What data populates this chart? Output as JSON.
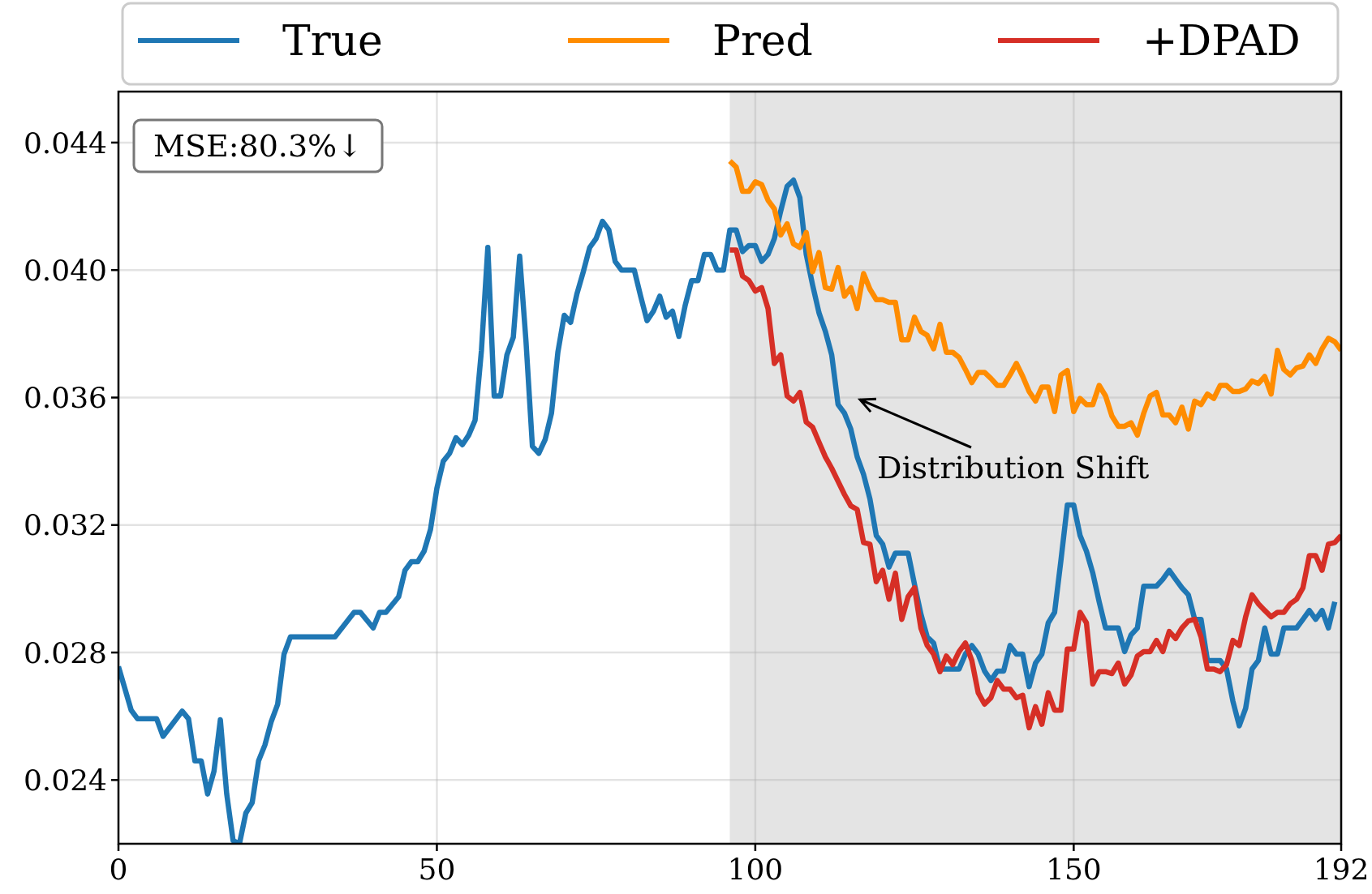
{
  "chart_data": {
    "type": "line",
    "xlim": [
      0,
      192
    ],
    "ylim": [
      0.022,
      0.0456
    ],
    "xticks": [
      0,
      50,
      100,
      150,
      192
    ],
    "yticks": [
      0.024,
      0.028,
      0.032,
      0.036,
      {
        "value": 0.04,
        "label": "0.040"
      },
      0.044
    ],
    "grid": true,
    "legend": "top",
    "line_style": "solid",
    "bands": [
      {
        "axis": "x",
        "from": 96,
        "to": 192,
        "color": "#e4e4e4"
      }
    ],
    "annotations": [
      "MSE:80.3%↓",
      "Distribution Shift"
    ],
    "series": [
      {
        "name": "True",
        "color": "#1f77b4",
        "x": [
          0,
          2,
          3,
          6,
          7,
          10,
          11,
          12,
          13,
          14,
          15,
          16,
          17,
          18,
          19,
          20,
          21,
          22,
          23,
          24,
          25,
          26,
          27,
          34,
          37,
          38,
          40,
          41,
          42,
          44,
          45,
          46,
          47,
          48,
          49,
          50,
          51,
          52,
          53,
          54,
          55,
          56,
          57,
          58,
          59,
          60,
          61,
          62,
          63,
          64,
          65,
          66,
          67,
          68,
          69,
          70,
          71,
          72,
          73,
          74,
          75,
          76,
          77,
          78,
          79,
          81,
          82,
          83,
          84,
          85,
          86,
          87,
          88,
          89,
          90,
          91,
          92,
          93,
          94,
          95,
          96,
          97,
          98,
          99,
          100,
          101,
          102,
          103,
          104,
          105,
          106,
          107,
          108,
          109,
          110,
          111,
          112,
          113,
          114,
          115,
          116,
          117,
          118,
          119,
          120,
          121,
          122,
          124,
          125,
          126,
          127,
          128,
          129,
          132,
          133,
          134,
          135,
          136,
          137,
          138,
          139,
          140,
          141,
          142,
          143,
          144,
          145,
          146,
          147,
          148,
          149,
          150,
          151,
          152,
          153,
          154,
          155,
          157,
          158,
          159,
          160,
          161,
          163,
          164,
          165,
          166,
          167,
          168,
          169,
          170,
          171,
          173,
          174,
          175,
          176,
          177,
          178,
          179,
          180,
          181,
          182,
          183,
          185,
          186,
          187,
          188,
          189,
          190,
          191
        ],
        "values": [
          0.02756,
          0.02619,
          0.02592,
          0.02592,
          0.02537,
          0.02616,
          0.02592,
          0.0246,
          0.0246,
          0.02356,
          0.02427,
          0.02589,
          0.02356,
          0.0221,
          0.022,
          0.02296,
          0.02329,
          0.0246,
          0.0251,
          0.02584,
          0.02638,
          0.02795,
          0.02849,
          0.02849,
          0.02926,
          0.02926,
          0.02877,
          0.02926,
          0.02926,
          0.02975,
          0.03058,
          0.03085,
          0.03085,
          0.03118,
          0.03186,
          0.03315,
          0.034,
          0.03425,
          0.03474,
          0.03452,
          0.03482,
          0.03529,
          0.03748,
          0.04071,
          0.03605,
          0.03605,
          0.03734,
          0.03789,
          0.04044,
          0.03775,
          0.03447,
          0.03425,
          0.03468,
          0.03551,
          0.03742,
          0.03858,
          0.03836,
          0.03926,
          0.03995,
          0.04071,
          0.04099,
          0.04153,
          0.04126,
          0.04027,
          0.04,
          0.04,
          0.03918,
          0.03841,
          0.03871,
          0.03918,
          0.03852,
          0.03871,
          0.03792,
          0.0389,
          0.03967,
          0.03967,
          0.04049,
          0.04049,
          0.04,
          0.04,
          0.04126,
          0.04126,
          0.04058,
          0.04077,
          0.04077,
          0.04027,
          0.04049,
          0.04099,
          0.04186,
          0.04263,
          0.04282,
          0.04227,
          0.04049,
          0.03953,
          0.03866,
          0.03808,
          0.03734,
          0.03578,
          0.03551,
          0.03501,
          0.03414,
          0.03359,
          0.03282,
          0.03167,
          0.0314,
          0.03068,
          0.03112,
          0.03112,
          0.03014,
          0.02921,
          0.02849,
          0.0283,
          0.02748,
          0.02748,
          0.02795,
          0.02822,
          0.02795,
          0.02742,
          0.02712,
          0.02742,
          0.02742,
          0.02822,
          0.02795,
          0.02795,
          0.02693,
          0.02767,
          0.02795,
          0.02893,
          0.02926,
          0.0309,
          0.03263,
          0.03263,
          0.03167,
          0.03118,
          0.03049,
          0.02959,
          0.02877,
          0.02877,
          0.02803,
          0.02855,
          0.02877,
          0.03008,
          0.03008,
          0.0303,
          0.03058,
          0.0303,
          0.03003,
          0.02981,
          0.02904,
          0.02904,
          0.02775,
          0.02775,
          0.02748,
          0.02647,
          0.0257,
          0.02625,
          0.02748,
          0.02775,
          0.02877,
          0.02795,
          0.02795,
          0.02877,
          0.02877,
          0.02904,
          0.02932,
          0.02904,
          0.02932,
          0.02877,
          0.02959
        ]
      },
      {
        "name": "Pred",
        "color": "#ff8c00",
        "x": [
          96,
          97,
          98,
          99,
          100,
          101,
          102,
          103,
          104,
          105,
          106,
          107,
          108,
          109,
          110,
          111,
          112,
          113,
          114,
          115,
          116,
          117,
          118,
          119,
          120,
          121,
          122,
          123,
          124,
          125,
          126,
          127,
          128,
          129,
          130,
          131,
          132,
          133,
          134,
          135,
          136,
          137,
          138,
          139,
          140,
          141,
          142,
          143,
          144,
          145,
          146,
          147,
          148,
          149,
          150,
          151,
          152,
          153,
          154,
          155,
          156,
          157,
          158,
          159,
          160,
          161,
          162,
          163,
          164,
          165,
          166,
          167,
          168,
          169,
          170,
          171,
          172,
          173,
          174,
          175,
          176,
          177,
          178,
          179,
          180,
          181,
          182,
          183,
          184,
          185,
          186,
          187,
          188,
          189,
          190,
          191,
          192
        ],
        "values": [
          0.04342,
          0.04323,
          0.04247,
          0.04247,
          0.04277,
          0.04268,
          0.04219,
          0.04192,
          0.0411,
          0.04145,
          0.04082,
          0.04071,
          0.04118,
          0.03995,
          0.04055,
          0.03945,
          0.0394,
          0.04008,
          0.03918,
          0.03945,
          0.03879,
          0.03989,
          0.0394,
          0.03907,
          0.03907,
          0.03899,
          0.03899,
          0.03781,
          0.03781,
          0.03852,
          0.03808,
          0.03795,
          0.03753,
          0.0383,
          0.03742,
          0.03742,
          0.03726,
          0.03688,
          0.03647,
          0.03679,
          0.03679,
          0.0366,
          0.03638,
          0.03638,
          0.03671,
          0.03707,
          0.03666,
          0.03619,
          0.03589,
          0.03633,
          0.03633,
          0.03556,
          0.03671,
          0.03685,
          0.03556,
          0.03597,
          0.03578,
          0.03578,
          0.03638,
          0.03605,
          0.03542,
          0.0351,
          0.0351,
          0.03521,
          0.03482,
          0.03551,
          0.03605,
          0.03616,
          0.03545,
          0.03545,
          0.03521,
          0.0357,
          0.03501,
          0.03589,
          0.03578,
          0.03611,
          0.03597,
          0.03638,
          0.03638,
          0.03619,
          0.03619,
          0.03627,
          0.03652,
          0.03644,
          0.03666,
          0.03611,
          0.03748,
          0.03688,
          0.03671,
          0.03693,
          0.03699,
          0.03734,
          0.03707,
          0.03753,
          0.03786,
          0.03775,
          0.03748
        ]
      },
      {
        "name": "+DPAD",
        "color": "#d62f26",
        "x": [
          96,
          97,
          98,
          99,
          100,
          101,
          102,
          103,
          104,
          105,
          106,
          107,
          108,
          109,
          110,
          111,
          112,
          113,
          114,
          115,
          116,
          117,
          118,
          119,
          120,
          121,
          122,
          123,
          124,
          125,
          126,
          127,
          128,
          129,
          130,
          131,
          132,
          133,
          134,
          135,
          136,
          137,
          138,
          139,
          140,
          141,
          142,
          143,
          144,
          145,
          146,
          147,
          148,
          149,
          150,
          151,
          152,
          153,
          154,
          155,
          156,
          157,
          158,
          159,
          160,
          161,
          162,
          163,
          164,
          165,
          166,
          167,
          168,
          169,
          170,
          171,
          172,
          173,
          174,
          175,
          176,
          177,
          178,
          179,
          180,
          181,
          182,
          183,
          184,
          185,
          186,
          187,
          188,
          189,
          190,
          191,
          192
        ],
        "values": [
          0.04063,
          0.04063,
          0.03981,
          0.03967,
          0.03934,
          0.03945,
          0.03879,
          0.03707,
          0.03734,
          0.03605,
          0.03589,
          0.03616,
          0.03523,
          0.03507,
          0.0346,
          0.03414,
          0.03378,
          0.03337,
          0.03296,
          0.0326,
          0.03249,
          0.03145,
          0.0314,
          0.03022,
          0.03058,
          0.02967,
          0.03049,
          0.02904,
          0.02975,
          0.03003,
          0.02877,
          0.02822,
          0.02795,
          0.0274,
          0.02789,
          0.02762,
          0.02803,
          0.0283,
          0.02775,
          0.02674,
          0.02638,
          0.02658,
          0.02712,
          0.02685,
          0.02685,
          0.02658,
          0.02666,
          0.02564,
          0.0263,
          0.02575,
          0.02674,
          0.02619,
          0.02619,
          0.02811,
          0.02811,
          0.02926,
          0.02893,
          0.02701,
          0.0274,
          0.0274,
          0.02734,
          0.02767,
          0.02701,
          0.02729,
          0.02789,
          0.02803,
          0.02803,
          0.02838,
          0.02803,
          0.02866,
          0.02844,
          0.02877,
          0.02899,
          0.02904,
          0.02849,
          0.02748,
          0.02748,
          0.0274,
          0.02762,
          0.02838,
          0.02822,
          0.02912,
          0.02981,
          0.02953,
          0.02932,
          0.02912,
          0.02926,
          0.02926,
          0.02953,
          0.02967,
          0.03003,
          0.03104,
          0.03104,
          0.03058,
          0.0314,
          0.03145,
          0.03167
        ]
      }
    ]
  }
}
